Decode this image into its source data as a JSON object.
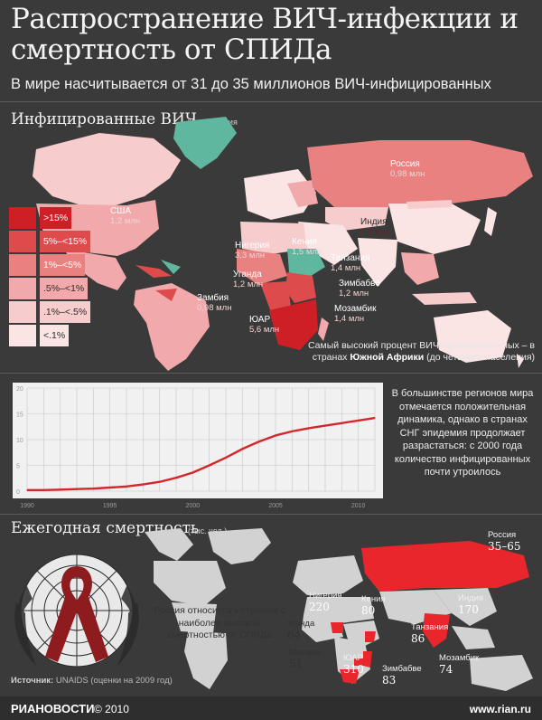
{
  "title": "Распространение ВИЧ-инфекции и смертность от СПИДа",
  "subtitle": "В мире насчитывается от 31 до 35 миллионов ВИЧ-инфицированных",
  "section1": {
    "title": "Инфицированные ВИЧ",
    "unit": "% населения"
  },
  "colors": {
    "level_1": "#cf1f26",
    "level_2": "#de4b4d",
    "level_3": "#e98181",
    "level_4": "#f1a9ab",
    "level_5": "#f6cccc",
    "level_6": "#fae4e4",
    "no_data": "#5fb7a0",
    "background": "#3a3a3a"
  },
  "legend": [
    {
      "label": ">15%",
      "color": "#cf1f26"
    },
    {
      "label": "5%–<15%",
      "color": "#de4b4d"
    },
    {
      "label": "1%–<5%",
      "color": "#e98181"
    },
    {
      "label": ".5%–<1%",
      "color": "#f1a9ab"
    },
    {
      "label": ".1%–<.5%",
      "color": "#f6cccc"
    },
    {
      "label": "<.1%",
      "color": "#fae4e4"
    }
  ],
  "map_labels": {
    "russia": {
      "name": "Россия",
      "value": "0,98 млн"
    },
    "usa": {
      "name": "США",
      "value": "1,2 млн"
    },
    "india": {
      "name": "Индия",
      "value": "2,4 млн"
    },
    "nigeria": {
      "name": "Нигерия",
      "value": "3,3 млн"
    },
    "kenya": {
      "name": "Кения",
      "value": "1,5 млн"
    },
    "tanzania": {
      "name": "Танзания",
      "value": "1,4 млн"
    },
    "uganda": {
      "name": "Уганда",
      "value": "1,2 млн"
    },
    "zimbabwe": {
      "name": "Зимбабве",
      "value": "1,2 млн"
    },
    "zambia": {
      "name": "Замбия",
      "value": "0,98 млн"
    },
    "mozambique": {
      "name": "Мозамбик",
      "value": "1,4 млн"
    },
    "sar": {
      "name": "ЮАР",
      "value": "5,6 млн"
    }
  },
  "note1": {
    "text": "Самый высокий процент ВИЧ-инфицированных – в странах",
    "bold": "Южной Африки",
    "tail": "(до четверти населения)"
  },
  "chart_data": {
    "type": "line",
    "x": [
      1990,
      1991,
      1992,
      1993,
      1994,
      1995,
      1996,
      1997,
      1998,
      1999,
      2000,
      2001,
      2002,
      2003,
      2004,
      2005,
      2006,
      2007,
      2008,
      2009,
      2010,
      2011
    ],
    "series": [
      {
        "values": [
          0.2,
          0.2,
          0.3,
          0.4,
          0.5,
          0.7,
          0.9,
          1.3,
          1.8,
          2.6,
          3.6,
          5.0,
          6.5,
          8.2,
          9.6,
          10.8,
          11.6,
          12.2,
          12.7,
          13.2,
          13.7,
          14.2
        ]
      }
    ],
    "ylim": [
      0,
      20
    ],
    "yticks": [
      "0",
      "5",
      "10",
      "15",
      "20"
    ],
    "xticks": [
      "1990",
      "1995",
      "2000",
      "2005",
      "2010"
    ],
    "grid": true,
    "title": "",
    "xlabel": "",
    "ylabel": ""
  },
  "chart_note": "В большинстве регионов мира отмечается положительная динамика, однако в странах СНГ эпидемия продолжает разрастаться: с 2000 года количество инфицированных почти утроилось",
  "section2": {
    "title": "Ежегодная смертность",
    "unit": "(тыс. чел.)"
  },
  "deaths": {
    "russia": {
      "name": "Россия",
      "value": "35–65"
    },
    "nigeria": {
      "name": "Нигерия",
      "value": "220"
    },
    "kenya": {
      "name": "Кения",
      "value": "80"
    },
    "india": {
      "name": "Индия",
      "value": "170"
    },
    "uganda": {
      "name": "Уганда",
      "value": "64"
    },
    "tanzania": {
      "name": "Танзания",
      "value": "86"
    },
    "malawi": {
      "name": "Малави",
      "value": "51"
    },
    "sar": {
      "name": "ЮАР",
      "value": "310"
    },
    "zimbabwe": {
      "name": "Зимбабве",
      "value": "83"
    },
    "mozambique": {
      "name": "Мозамбик",
      "value": "74"
    }
  },
  "russia_note": "Россия относится к странам с наиболее высокой смертностью от СПИДа",
  "source": {
    "label": "Источник:",
    "text": "UNAIDS (оценки на 2009 год)"
  },
  "footer": {
    "brand": "РИАНОВОСТИ",
    "copyright": "© 2010",
    "site": "www.rian.ru"
  }
}
